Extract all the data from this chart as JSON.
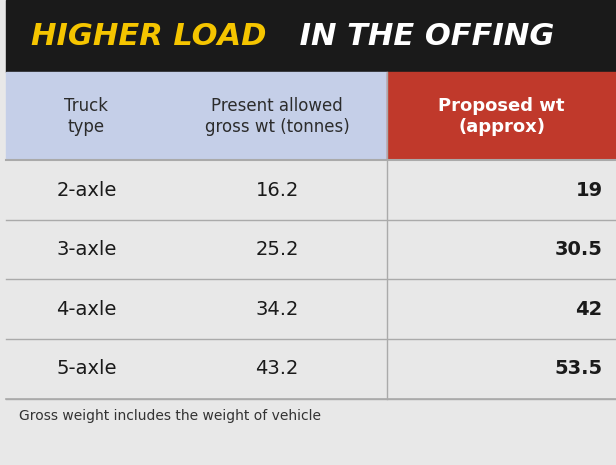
{
  "title_part1": "HIGHER LOAD",
  "title_part2": " IN THE OFFING",
  "title_bg_color": "#1a1a1a",
  "title_text_color1": "#f5c500",
  "title_text_color2": "#ffffff",
  "header_col1": "Truck\ntype",
  "header_col2": "Present allowed\ngross wt (tonnes)",
  "header_col3": "Proposed wt\n(approx)",
  "header_bg_col12": "#c5cfe8",
  "header_bg_col3": "#c0392b",
  "header_text_col3": "#ffffff",
  "rows": [
    {
      "type": "2-axle",
      "present": "16.2",
      "proposed": "19"
    },
    {
      "type": "3-axle",
      "present": "25.2",
      "proposed": "30.5"
    },
    {
      "type": "4-axle",
      "present": "34.2",
      "proposed": "42"
    },
    {
      "type": "5-axle",
      "present": "43.2",
      "proposed": "53.5"
    }
  ],
  "row_bg": "#e8e8e8",
  "row_text_color": "#1a1a1a",
  "proposed_text_color": "#1a1a1a",
  "footer_text": "Gross weight includes the weight of vehicle",
  "footer_bg": "#e8e8e8",
  "separator_color": "#aaaaaa",
  "fig_width": 6.16,
  "fig_height": 4.65,
  "dpi": 100
}
